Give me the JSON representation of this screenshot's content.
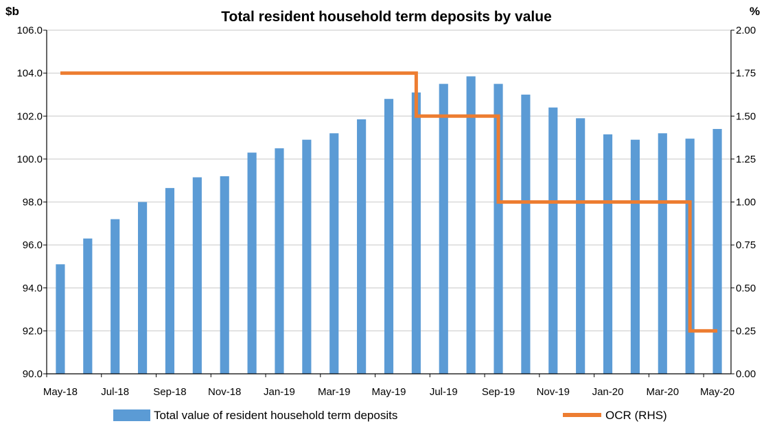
{
  "chart_data": {
    "type": "bar",
    "title": "Total resident household term deposits by value",
    "y_left_unit": "$b",
    "y_right_unit": "%",
    "categories": [
      "May-18",
      "Jun-18",
      "Jul-18",
      "Aug-18",
      "Sep-18",
      "Oct-18",
      "Nov-18",
      "Dec-18",
      "Jan-19",
      "Feb-19",
      "Mar-19",
      "Apr-19",
      "May-19",
      "Jun-19",
      "Jul-19",
      "Aug-19",
      "Sep-19",
      "Oct-19",
      "Nov-19",
      "Dec-19",
      "Jan-20",
      "Feb-20",
      "Mar-20",
      "Apr-20",
      "May-20"
    ],
    "x_tick_labels": [
      "May-18",
      "Jul-18",
      "Sep-18",
      "Nov-18",
      "Jan-19",
      "Mar-19",
      "May-19",
      "Jul-19",
      "Sep-19",
      "Nov-19",
      "Jan-20",
      "Mar-20",
      "May-20"
    ],
    "ylim_left": [
      90,
      106
    ],
    "ylim_right": [
      0,
      2
    ],
    "y_left_ticks": [
      "106.0",
      "104.0",
      "102.0",
      "100.0",
      "98.0",
      "96.0",
      "94.0",
      "92.0",
      "90.0"
    ],
    "y_right_ticks": [
      "2.00",
      "1.75",
      "1.50",
      "1.25",
      "1.00",
      "0.75",
      "0.50",
      "0.25",
      "0.00"
    ],
    "grid": true,
    "legend_position": "bottom",
    "series": [
      {
        "name": "Total value of resident household term deposits",
        "type": "bar",
        "axis": "left",
        "color": "#5b9bd5",
        "values": [
          95.1,
          96.3,
          97.2,
          98.0,
          98.65,
          99.15,
          99.2,
          100.3,
          100.5,
          100.9,
          101.2,
          101.85,
          102.8,
          103.1,
          103.5,
          103.85,
          103.5,
          103.0,
          102.4,
          101.9,
          101.15,
          100.9,
          101.2,
          100.95,
          101.4
        ]
      },
      {
        "name": "OCR (RHS)",
        "type": "step-line",
        "axis": "right",
        "color": "#ed7d31",
        "values": [
          1.75,
          1.75,
          1.75,
          1.75,
          1.75,
          1.75,
          1.75,
          1.75,
          1.75,
          1.75,
          1.75,
          1.75,
          1.75,
          1.5,
          1.5,
          1.5,
          1.0,
          1.0,
          1.0,
          1.0,
          1.0,
          1.0,
          1.0,
          0.25,
          0.25
        ]
      }
    ]
  }
}
